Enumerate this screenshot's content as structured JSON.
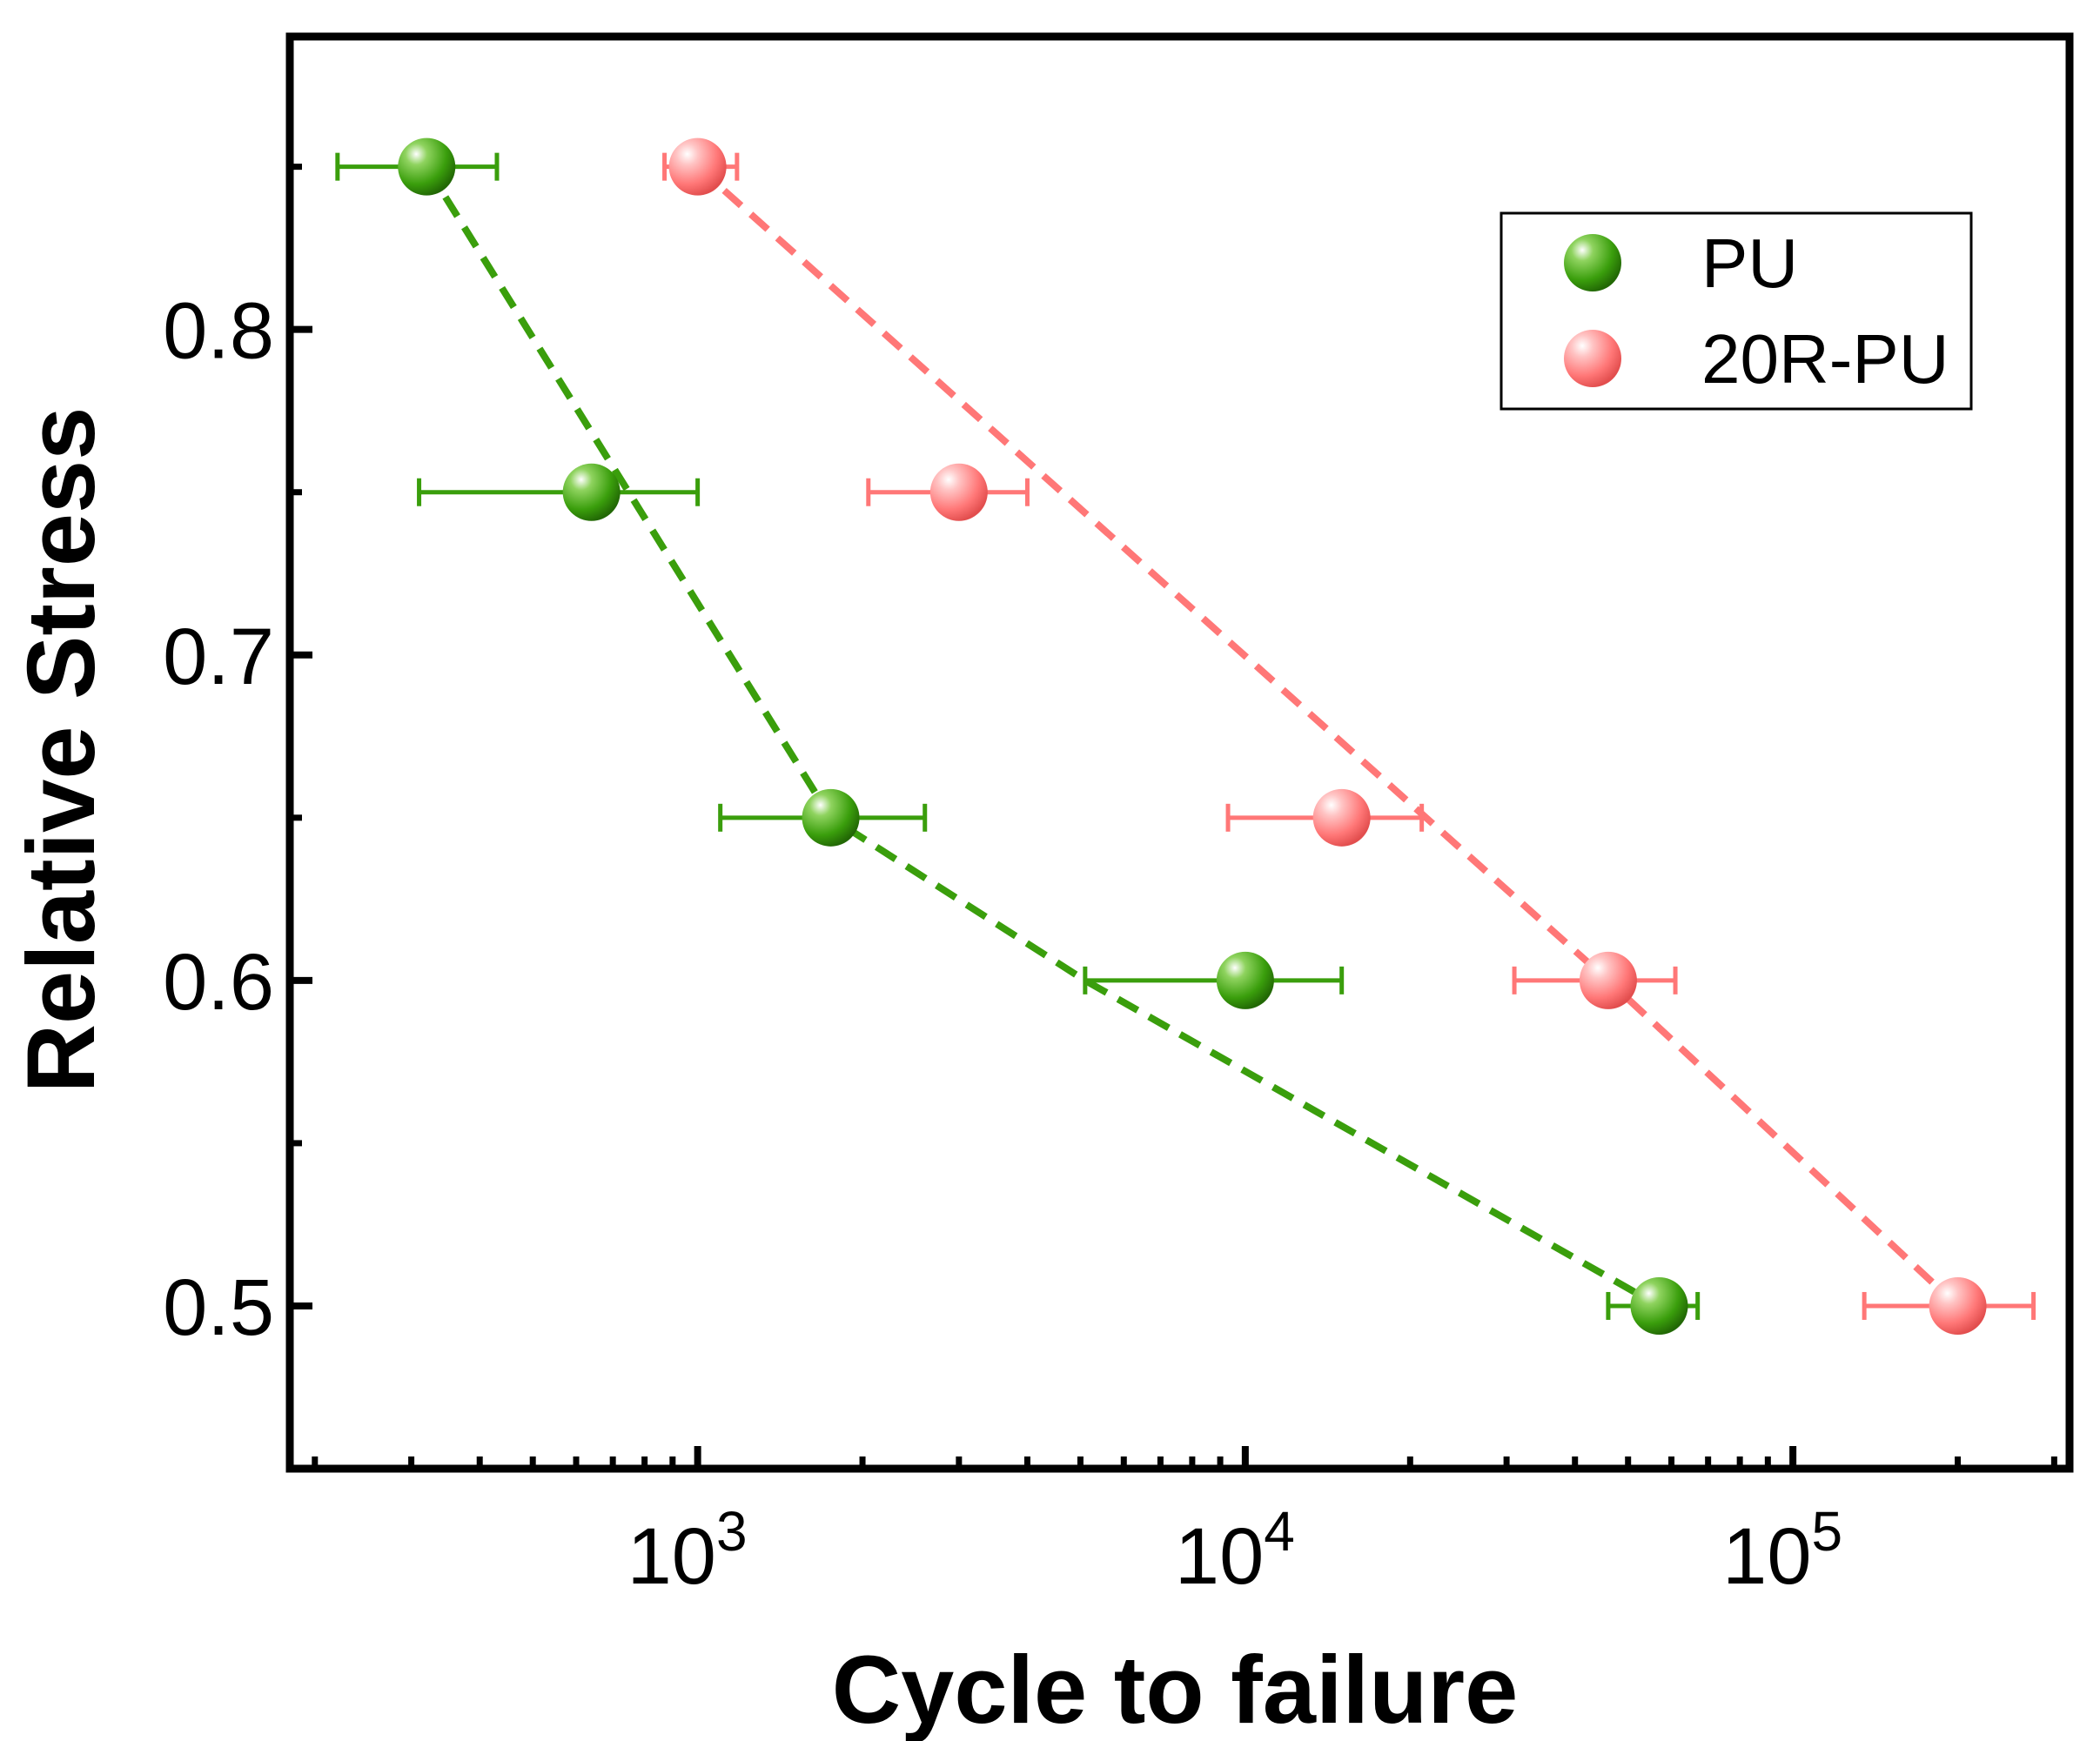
{
  "chart_data": {
    "type": "scatter",
    "xlabel": "Cycle to failure",
    "ylabel": "Relative Stress",
    "xscale": "log",
    "xlim": [
      180,
      320000
    ],
    "ylim": [
      0.45,
      0.89
    ],
    "x_ticks": [
      {
        "base": "10",
        "exp": "3",
        "value": 1000
      },
      {
        "base": "10",
        "exp": "4",
        "value": 10000
      },
      {
        "base": "10",
        "exp": "5",
        "value": 100000
      }
    ],
    "y_ticks": [
      "0.5",
      "0.6",
      "0.7",
      "0.8"
    ],
    "y_minor_ticks": [
      0.55,
      0.65,
      0.75,
      0.85
    ],
    "legend_position": "top-right",
    "series": [
      {
        "name": "PU",
        "color": "#3a9e0c",
        "line_style": "dashed",
        "points": [
          {
            "x": 320,
            "y": 0.85,
            "xerr_low": 220,
            "xerr_high": 430
          },
          {
            "x": 640,
            "y": 0.75,
            "xerr_low": 310,
            "xerr_high": 1000
          },
          {
            "x": 1750,
            "y": 0.65,
            "xerr_low": 1100,
            "xerr_high": 2600
          },
          {
            "x": 10000,
            "y": 0.6,
            "xerr_low": 5100,
            "xerr_high": 15000
          },
          {
            "x": 57000,
            "y": 0.5,
            "xerr_low": 46000,
            "xerr_high": 67000
          }
        ],
        "line_points": [
          {
            "x": 320,
            "y": 0.85
          },
          {
            "x": 1750,
            "y": 0.65
          },
          {
            "x": 5100,
            "y": 0.6
          },
          {
            "x": 57000,
            "y": 0.5
          }
        ]
      },
      {
        "name": "20R-PU",
        "color": "#ff7777",
        "line_style": "dashed",
        "points": [
          {
            "x": 1000,
            "y": 0.85,
            "xerr_low": 870,
            "xerr_high": 1180
          },
          {
            "x": 3000,
            "y": 0.75,
            "xerr_low": 2050,
            "xerr_high": 4000
          },
          {
            "x": 15000,
            "y": 0.65,
            "xerr_low": 9300,
            "xerr_high": 21000
          },
          {
            "x": 46000,
            "y": 0.6,
            "xerr_low": 31000,
            "xerr_high": 61000
          },
          {
            "x": 200000,
            "y": 0.5,
            "xerr_low": 135000,
            "xerr_high": 275000
          }
        ],
        "line_points": [
          {
            "x": 1000,
            "y": 0.85
          },
          {
            "x": 46000,
            "y": 0.6
          },
          {
            "x": 200000,
            "y": 0.5
          }
        ]
      }
    ]
  }
}
